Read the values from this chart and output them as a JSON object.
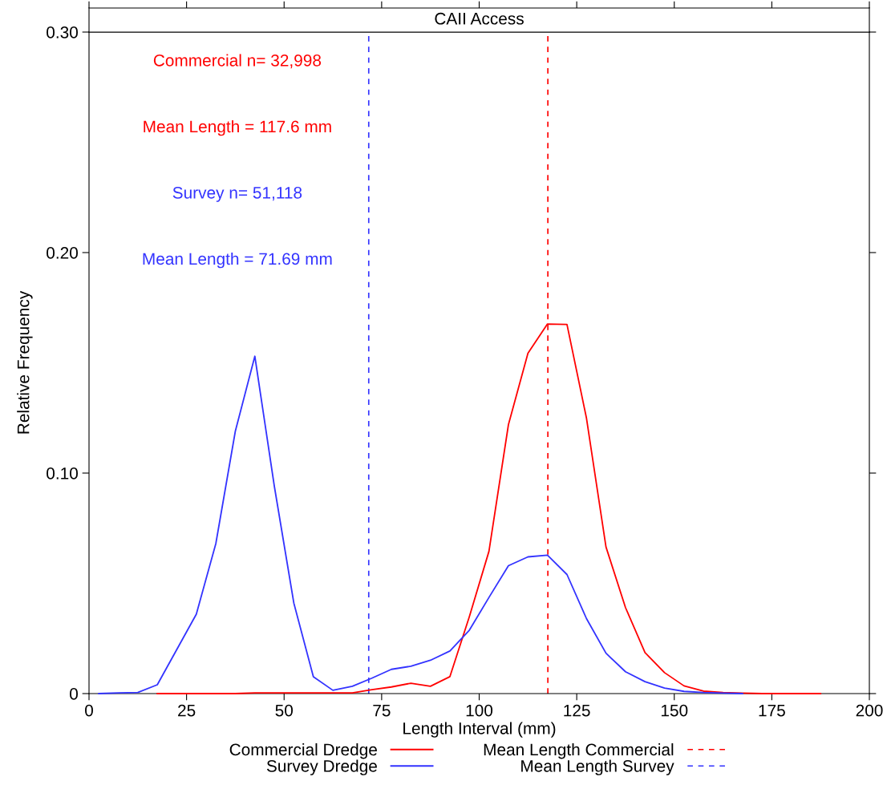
{
  "chart_data": {
    "type": "line",
    "title": "CAII Access",
    "xlabel": "Length Interval (mm)",
    "ylabel": "Relative Frequency",
    "x": [
      2.5,
      7.5,
      12.5,
      17.5,
      22.5,
      27.5,
      32.5,
      37.5,
      42.5,
      47.5,
      52.5,
      57.5,
      62.5,
      67.5,
      72.5,
      77.5,
      82.5,
      87.5,
      92.5,
      97.5,
      102.5,
      107.5,
      112.5,
      117.5,
      122.5,
      127.5,
      132.5,
      137.5,
      142.5,
      147.5,
      152.5,
      157.5,
      162.5,
      167.5,
      172.5,
      177.5,
      182.5,
      187.5
    ],
    "series": [
      {
        "name": "Commercial Dredge",
        "color": "#ff0000",
        "values": [
          null,
          null,
          null,
          0,
          0,
          0,
          0,
          0,
          0.0003,
          0.0003,
          0.0003,
          0.0003,
          0.0003,
          0.0003,
          0.0018,
          0.003,
          0.0047,
          0.0033,
          0.0077,
          0.035,
          0.0645,
          0.122,
          0.1544,
          0.1676,
          0.1674,
          0.1249,
          0.0665,
          0.039,
          0.0186,
          0.0095,
          0.0035,
          0.0011,
          0.0005,
          0.0002,
          0,
          0,
          0,
          0
        ]
      },
      {
        "name": "Survey Dredge",
        "color": "#3333ff",
        "values": [
          0,
          0.0003,
          0.0005,
          0.004,
          0.02,
          0.036,
          0.068,
          0.119,
          0.153,
          0.094,
          0.041,
          0.0076,
          0.0015,
          0.0033,
          0.007,
          0.011,
          0.0124,
          0.0151,
          0.0193,
          0.0288,
          0.0436,
          0.058,
          0.062,
          0.0628,
          0.054,
          0.034,
          0.0183,
          0.0099,
          0.0054,
          0.0025,
          0.001,
          0.0005,
          0.0002,
          0,
          null,
          null,
          null,
          null
        ]
      }
    ],
    "ref_lines": [
      {
        "axis": "x",
        "value": 117.6,
        "label": "Mean Length Commercial",
        "color": "#ff0000",
        "line_style": "dashed"
      },
      {
        "axis": "x",
        "value": 71.69,
        "label": "Mean Length Survey",
        "color": "#3333ff",
        "line_style": "dashed"
      }
    ],
    "annotations": [
      "Commercial n= 32,998",
      "Mean Length = 117.6 mm",
      "Survey n= 51,118",
      "Mean Length = 71.69 mm"
    ],
    "xlim": [
      0,
      200
    ],
    "xticks": [
      0,
      25,
      50,
      75,
      100,
      125,
      150,
      175,
      200
    ],
    "ylim": [
      0,
      0.3
    ],
    "yticks": [
      0,
      {
        "value": 0.1,
        "label": "0.10"
      },
      {
        "value": 0.2,
        "label": "0.20"
      },
      {
        "value": 0.3,
        "label": "0.30"
      }
    ],
    "grid": false,
    "legend": "bottom",
    "marker": "none",
    "line_style": "solid"
  }
}
